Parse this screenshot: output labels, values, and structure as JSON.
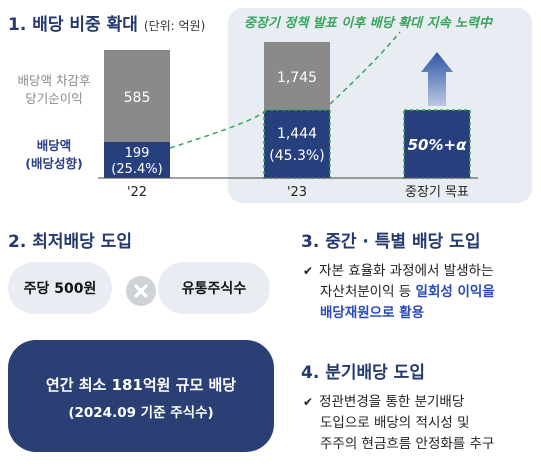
{
  "section1": {
    "title": "1. 배당 비중 확대",
    "unit": "(단위: 억원)"
  },
  "banner": "중장기 정책 발표 이후 배당 확대 지속 노력中",
  "row_labels": {
    "top_line1": "배당액 차감후",
    "top_line2": "당기순이익",
    "bottom_line1": "배당액",
    "bottom_line2": "(배당성향)"
  },
  "chart_data": {
    "type": "bar",
    "stacked": true,
    "categories": [
      "'22",
      "'23",
      "중장기 목표"
    ],
    "series": [
      {
        "name": "배당액",
        "values": [
          199,
          1444,
          null
        ],
        "labels": [
          "199",
          "1,444",
          "50%+α"
        ],
        "sublabels": [
          "(25.4%)",
          "(45.3%)",
          ""
        ],
        "payout_ratio_pct": [
          25.4,
          45.3,
          50
        ]
      },
      {
        "name": "배당액 차감후 당기순이익",
        "values": [
          585,
          1745,
          null
        ],
        "labels": [
          "585",
          "1,745",
          ""
        ]
      }
    ],
    "target_label": "50%+α",
    "colors": {
      "dividend": "#283f7e",
      "net_income": "#8a8a8a",
      "trend": "#3aa55a",
      "arrow": "#2f55a4"
    }
  },
  "section2": {
    "title": "2. 최저배당 도입",
    "pill_left": "주당 500원",
    "pill_right": "유통주식수",
    "box_line1": "연간 최소 181억원 규모 배당",
    "box_line2": "(2024.09 기준 주식수)",
    "operator_icon": "multiply-icon"
  },
  "section3": {
    "title": "3. 중간 · 특별 배당 도입",
    "bullet_line1": "자본 효율화 과정에서 발생하는",
    "bullet_line2_a": "자산처분이익 등 ",
    "bullet_line2_b": "일회성 이익을",
    "bullet_line3": "배당재원으로 활용"
  },
  "section4": {
    "title": "4. 분기배당 도입",
    "bullet_line1": "정관변경을 통한 분기배당",
    "bullet_line2": "도입으로 배당의 적시성 및",
    "bullet_line3": "주주의 현금흐름 안정화를 추구"
  },
  "check_icon": "✔"
}
